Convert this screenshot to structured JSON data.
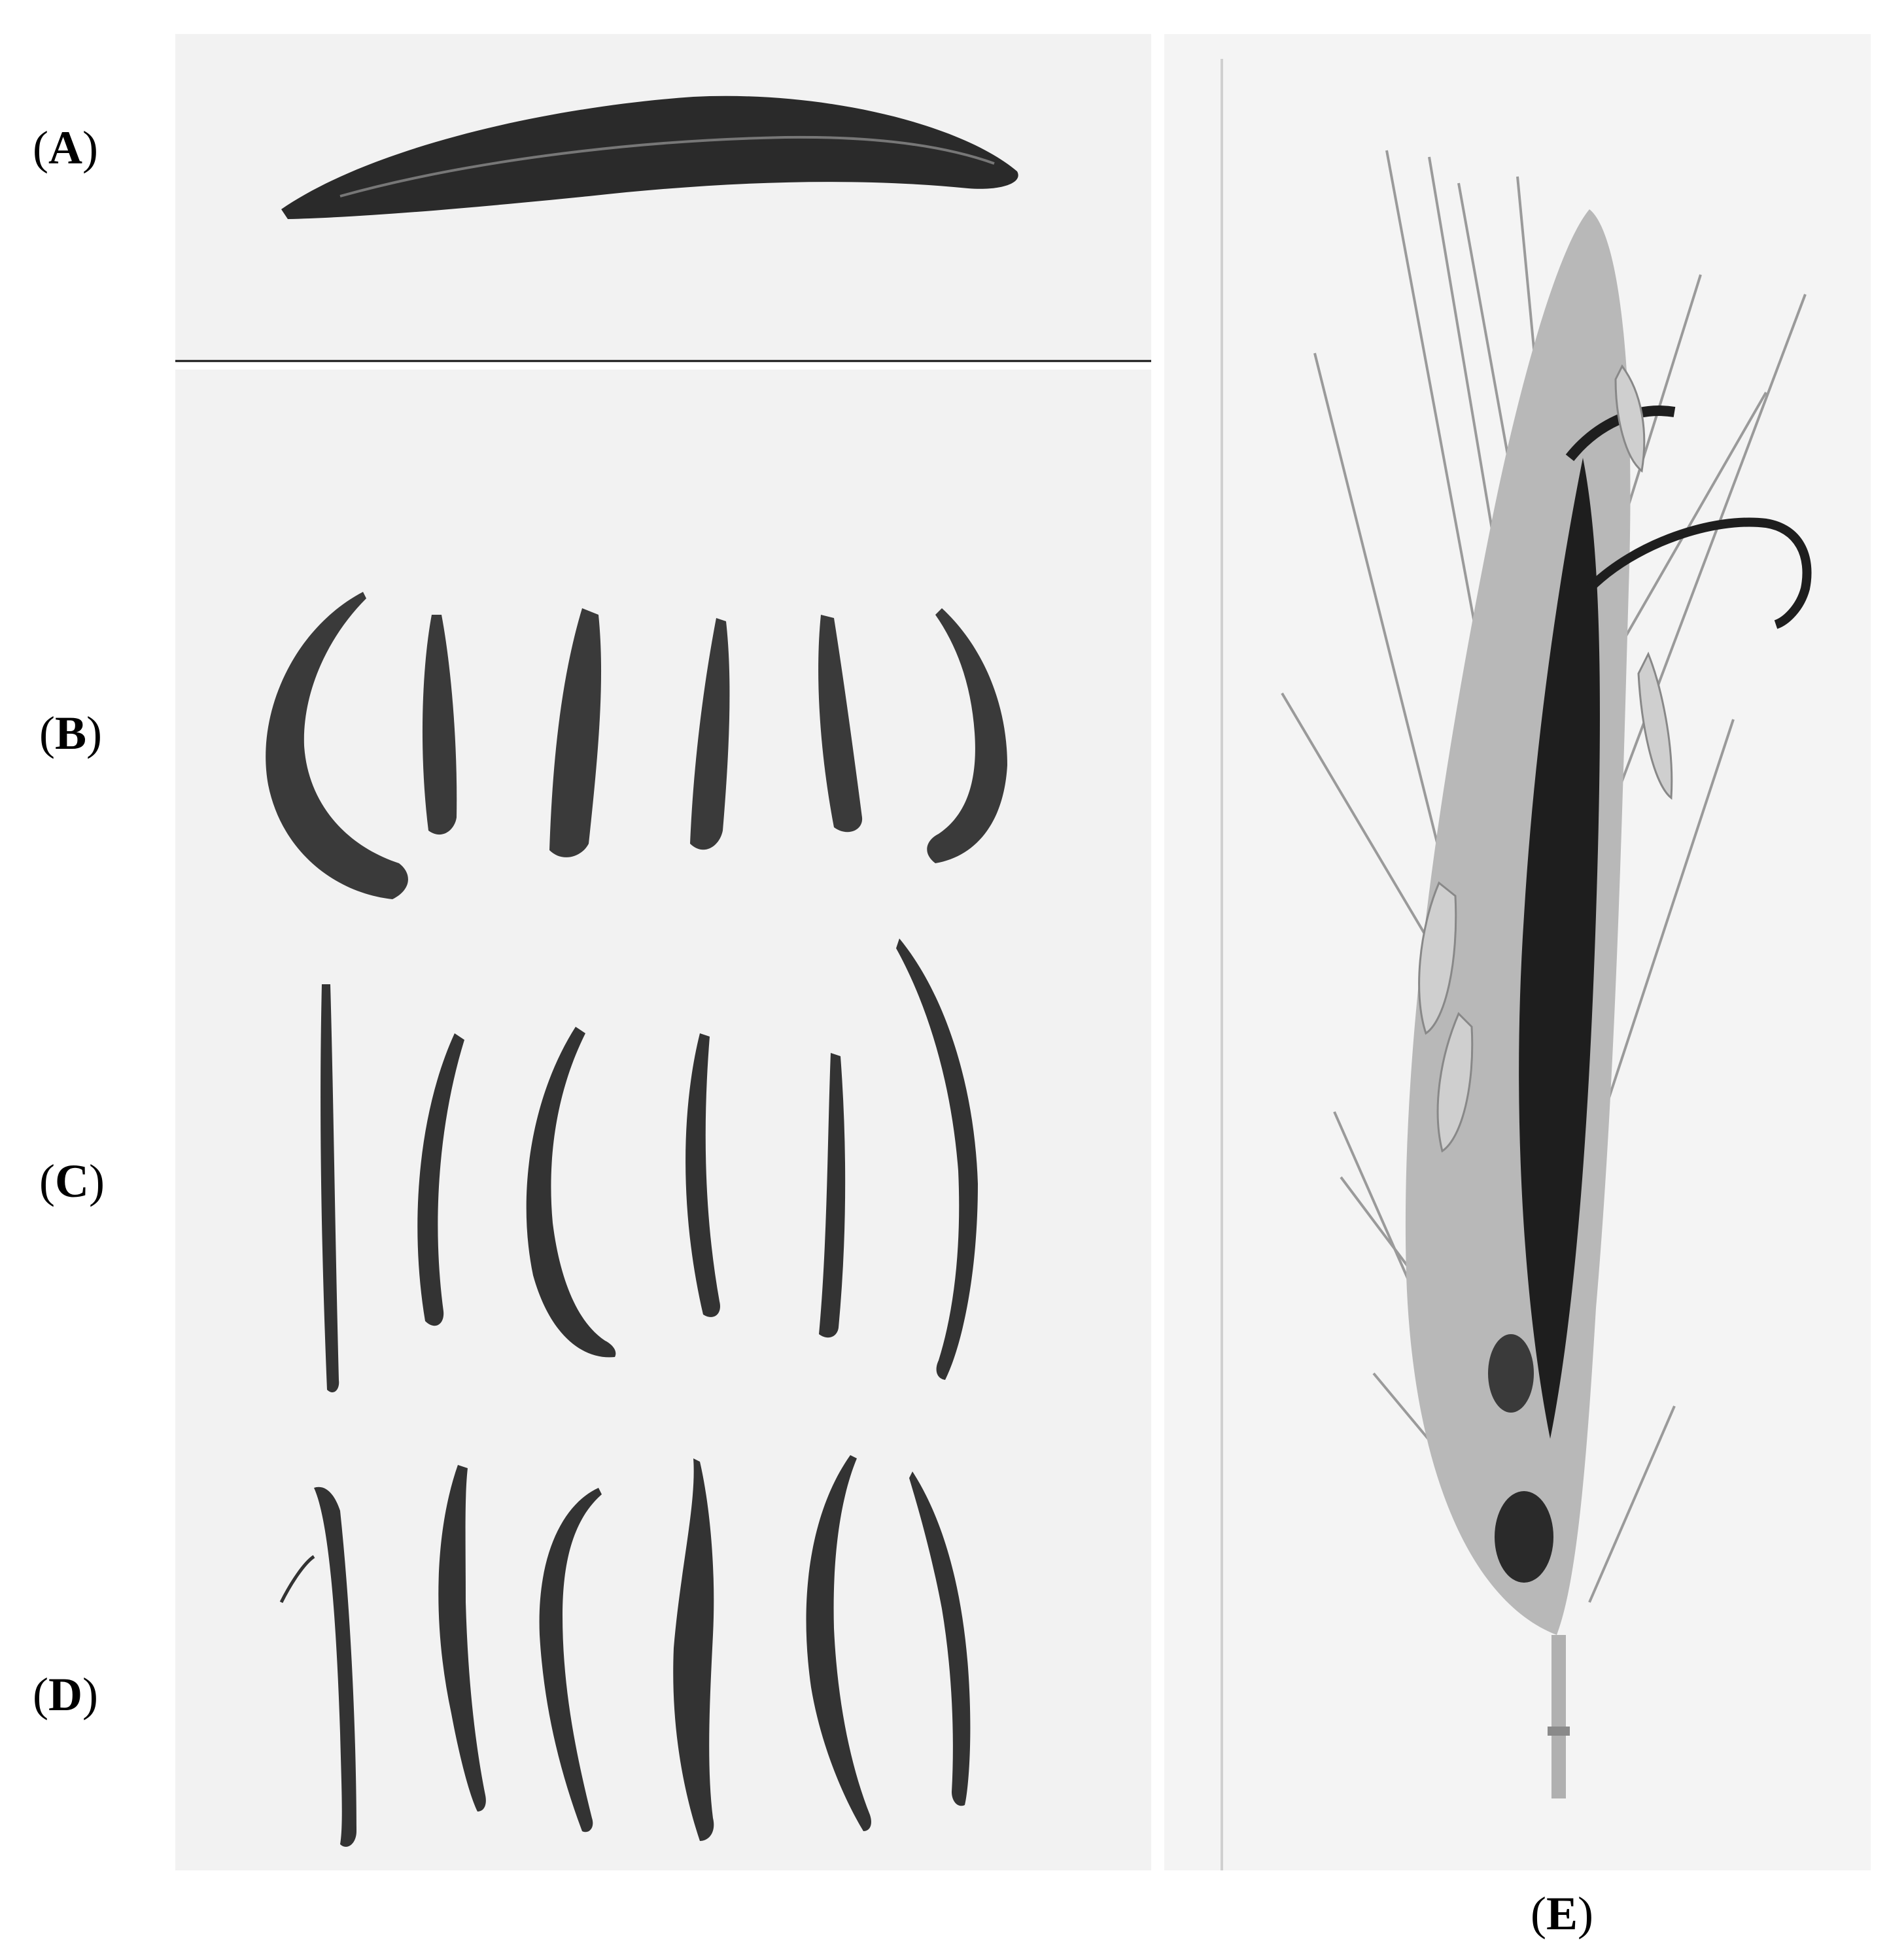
{
  "labels": {
    "a": {
      "open": "(",
      "letter": "A",
      "close": ")"
    },
    "b": {
      "open": "(",
      "letter": "B",
      "close": ")"
    },
    "c": {
      "open": "(",
      "letter": "C",
      "close": ")"
    },
    "d": {
      "open": "(",
      "letter": "D",
      "close": ")"
    },
    "e": {
      "open": "(",
      "letter": "E",
      "close": ")"
    }
  },
  "colors": {
    "background": "#ffffff",
    "photo_background": "#f2f2f2",
    "sclerotium": "#2a2a2a",
    "spike_light": "#b8b8b8",
    "spike_dark": "#1e1e1e"
  }
}
